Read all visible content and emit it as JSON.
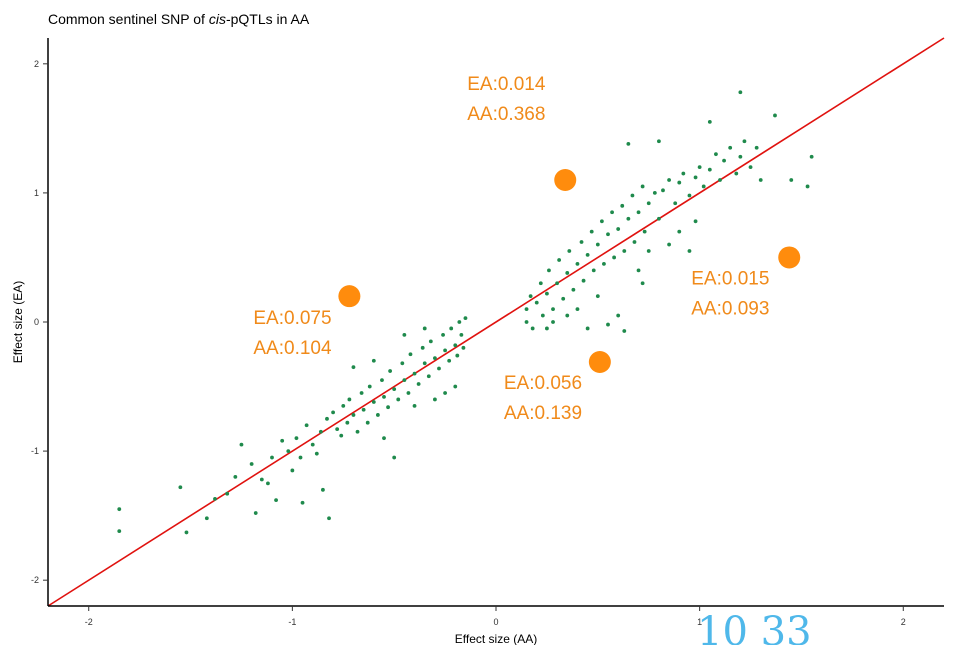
{
  "chart_data": {
    "type": "scatter",
    "title": {
      "before": "Common sentinel SNP of ",
      "italic": "cis",
      "after": "-pQTLs in AA"
    },
    "xlabel": "Effect size (AA)",
    "ylabel": "Effect size (EA)",
    "xlim": [
      -2.2,
      2.2
    ],
    "ylim": [
      -2.2,
      2.2
    ],
    "x_ticks": [
      -2,
      -1,
      0,
      1,
      2
    ],
    "y_ticks": [
      -2,
      -1,
      0,
      1,
      2
    ],
    "x_tick_labels": [
      "-2",
      "-1",
      "0",
      "1",
      "2"
    ],
    "y_tick_labels": [
      "-2",
      "-1",
      "0",
      "1",
      "2"
    ],
    "grid": false,
    "reference_line": {
      "x": [
        -2.2,
        2.2
      ],
      "y": [
        -2.2,
        2.2
      ],
      "color": "#e0120f"
    },
    "point_color": "#1f8a4c",
    "highlight_color": "#ff8c0d",
    "points": [
      [
        -1.85,
        -1.45
      ],
      [
        -1.85,
        -1.62
      ],
      [
        -1.55,
        -1.28
      ],
      [
        -1.52,
        -1.63
      ],
      [
        -1.42,
        -1.52
      ],
      [
        -1.38,
        -1.37
      ],
      [
        -1.32,
        -1.33
      ],
      [
        -1.28,
        -1.2
      ],
      [
        -1.25,
        -0.95
      ],
      [
        -1.2,
        -1.1
      ],
      [
        -1.18,
        -1.48
      ],
      [
        -1.15,
        -1.22
      ],
      [
        -1.12,
        -1.25
      ],
      [
        -1.1,
        -1.05
      ],
      [
        -1.08,
        -1.38
      ],
      [
        -1.05,
        -0.92
      ],
      [
        -1.02,
        -1.0
      ],
      [
        -1.0,
        -1.15
      ],
      [
        -0.98,
        -0.9
      ],
      [
        -0.96,
        -1.05
      ],
      [
        -0.95,
        -1.4
      ],
      [
        -0.93,
        -0.8
      ],
      [
        -0.9,
        -0.95
      ],
      [
        -0.88,
        -1.02
      ],
      [
        -0.86,
        -0.85
      ],
      [
        -0.85,
        -1.3
      ],
      [
        -0.83,
        -0.75
      ],
      [
        -0.82,
        -1.52
      ],
      [
        -0.8,
        -0.7
      ],
      [
        -0.78,
        -0.83
      ],
      [
        -0.76,
        -0.88
      ],
      [
        -0.75,
        -0.65
      ],
      [
        -0.73,
        -0.78
      ],
      [
        -0.72,
        -0.6
      ],
      [
        -0.7,
        -0.72
      ],
      [
        -0.68,
        -0.85
      ],
      [
        -0.66,
        -0.55
      ],
      [
        -0.65,
        -0.68
      ],
      [
        -0.63,
        -0.78
      ],
      [
        -0.62,
        -0.5
      ],
      [
        -0.6,
        -0.62
      ],
      [
        -0.58,
        -0.72
      ],
      [
        -0.56,
        -0.45
      ],
      [
        -0.55,
        -0.58
      ],
      [
        -0.53,
        -0.66
      ],
      [
        -0.52,
        -0.38
      ],
      [
        -0.5,
        -0.52
      ],
      [
        -0.48,
        -0.6
      ],
      [
        -0.46,
        -0.32
      ],
      [
        -0.45,
        -0.45
      ],
      [
        -0.43,
        -0.55
      ],
      [
        -0.42,
        -0.25
      ],
      [
        -0.4,
        -0.4
      ],
      [
        -0.38,
        -0.48
      ],
      [
        -0.36,
        -0.2
      ],
      [
        -0.35,
        -0.32
      ],
      [
        -0.33,
        -0.42
      ],
      [
        -0.32,
        -0.15
      ],
      [
        -0.3,
        -0.28
      ],
      [
        -0.28,
        -0.36
      ],
      [
        -0.26,
        -0.1
      ],
      [
        -0.25,
        -0.22
      ],
      [
        -0.23,
        -0.3
      ],
      [
        -0.22,
        -0.05
      ],
      [
        -0.2,
        -0.18
      ],
      [
        -0.19,
        -0.26
      ],
      [
        -0.18,
        0.0
      ],
      [
        -0.17,
        -0.1
      ],
      [
        -0.16,
        -0.2
      ],
      [
        -0.15,
        0.03
      ],
      [
        -0.2,
        -0.5
      ],
      [
        -0.3,
        -0.6
      ],
      [
        -0.35,
        -0.05
      ],
      [
        -0.45,
        -0.1
      ],
      [
        -0.25,
        -0.55
      ],
      [
        -0.4,
        -0.65
      ],
      [
        -0.5,
        -1.05
      ],
      [
        -0.6,
        -0.3
      ],
      [
        -0.7,
        -0.35
      ],
      [
        -0.55,
        -0.9
      ],
      [
        0.15,
        0.0
      ],
      [
        0.15,
        0.1
      ],
      [
        0.17,
        0.2
      ],
      [
        0.18,
        -0.05
      ],
      [
        0.2,
        0.15
      ],
      [
        0.22,
        0.3
      ],
      [
        0.23,
        0.05
      ],
      [
        0.25,
        0.22
      ],
      [
        0.26,
        0.4
      ],
      [
        0.28,
        0.1
      ],
      [
        0.3,
        0.3
      ],
      [
        0.31,
        0.48
      ],
      [
        0.33,
        0.18
      ],
      [
        0.35,
        0.38
      ],
      [
        0.36,
        0.55
      ],
      [
        0.38,
        0.25
      ],
      [
        0.4,
        0.45
      ],
      [
        0.42,
        0.62
      ],
      [
        0.43,
        0.32
      ],
      [
        0.45,
        0.52
      ],
      [
        0.47,
        0.7
      ],
      [
        0.48,
        0.4
      ],
      [
        0.5,
        0.6
      ],
      [
        0.52,
        0.78
      ],
      [
        0.53,
        0.45
      ],
      [
        0.55,
        0.68
      ],
      [
        0.57,
        0.85
      ],
      [
        0.58,
        0.5
      ],
      [
        0.6,
        0.72
      ],
      [
        0.62,
        0.9
      ],
      [
        0.63,
        0.55
      ],
      [
        0.65,
        0.8
      ],
      [
        0.67,
        0.98
      ],
      [
        0.68,
        0.62
      ],
      [
        0.7,
        0.85
      ],
      [
        0.72,
        1.05
      ],
      [
        0.73,
        0.7
      ],
      [
        0.75,
        0.92
      ],
      [
        0.78,
        1.0
      ],
      [
        0.8,
        0.8
      ],
      [
        0.82,
        1.02
      ],
      [
        0.85,
        1.1
      ],
      [
        0.88,
        0.92
      ],
      [
        0.9,
        1.08
      ],
      [
        0.92,
        1.15
      ],
      [
        0.95,
        0.98
      ],
      [
        0.98,
        1.12
      ],
      [
        1.0,
        1.2
      ],
      [
        1.02,
        1.05
      ],
      [
        1.05,
        1.18
      ],
      [
        1.08,
        1.3
      ],
      [
        1.1,
        1.1
      ],
      [
        1.12,
        1.25
      ],
      [
        1.15,
        1.35
      ],
      [
        1.18,
        1.15
      ],
      [
        1.2,
        1.28
      ],
      [
        1.22,
        1.4
      ],
      [
        1.25,
        1.2
      ],
      [
        1.28,
        1.35
      ],
      [
        1.3,
        1.1
      ],
      [
        0.65,
        1.38
      ],
      [
        0.8,
        1.4
      ],
      [
        1.05,
        1.55
      ],
      [
        1.2,
        1.78
      ],
      [
        1.37,
        1.6
      ],
      [
        1.45,
        1.1
      ],
      [
        1.55,
        1.28
      ],
      [
        1.53,
        1.05
      ],
      [
        0.45,
        -0.05
      ],
      [
        0.55,
        -0.02
      ],
      [
        0.6,
        0.05
      ],
      [
        0.63,
        -0.07
      ],
      [
        0.4,
        0.1
      ],
      [
        0.35,
        0.05
      ],
      [
        0.28,
        0.0
      ],
      [
        0.25,
        -0.05
      ],
      [
        0.5,
        0.2
      ],
      [
        0.7,
        0.4
      ],
      [
        0.75,
        0.55
      ],
      [
        0.85,
        0.6
      ],
      [
        0.9,
        0.7
      ],
      [
        0.95,
        0.55
      ],
      [
        0.98,
        0.78
      ],
      [
        0.72,
        0.3
      ]
    ],
    "highlighted": [
      {
        "x": -0.72,
        "y": 0.2,
        "label": [
          "EA:0.075",
          "AA:0.104"
        ]
      },
      {
        "x": 0.34,
        "y": 1.1,
        "label": [
          "EA:0.014",
          "AA:0.368"
        ]
      },
      {
        "x": 0.51,
        "y": -0.31,
        "label": [
          "EA:0.056",
          "AA:0.139"
        ]
      },
      {
        "x": 1.44,
        "y": 0.5,
        "label": [
          "EA:0.015",
          "AA:0.093"
        ]
      }
    ],
    "overlay_text": "10 33"
  }
}
